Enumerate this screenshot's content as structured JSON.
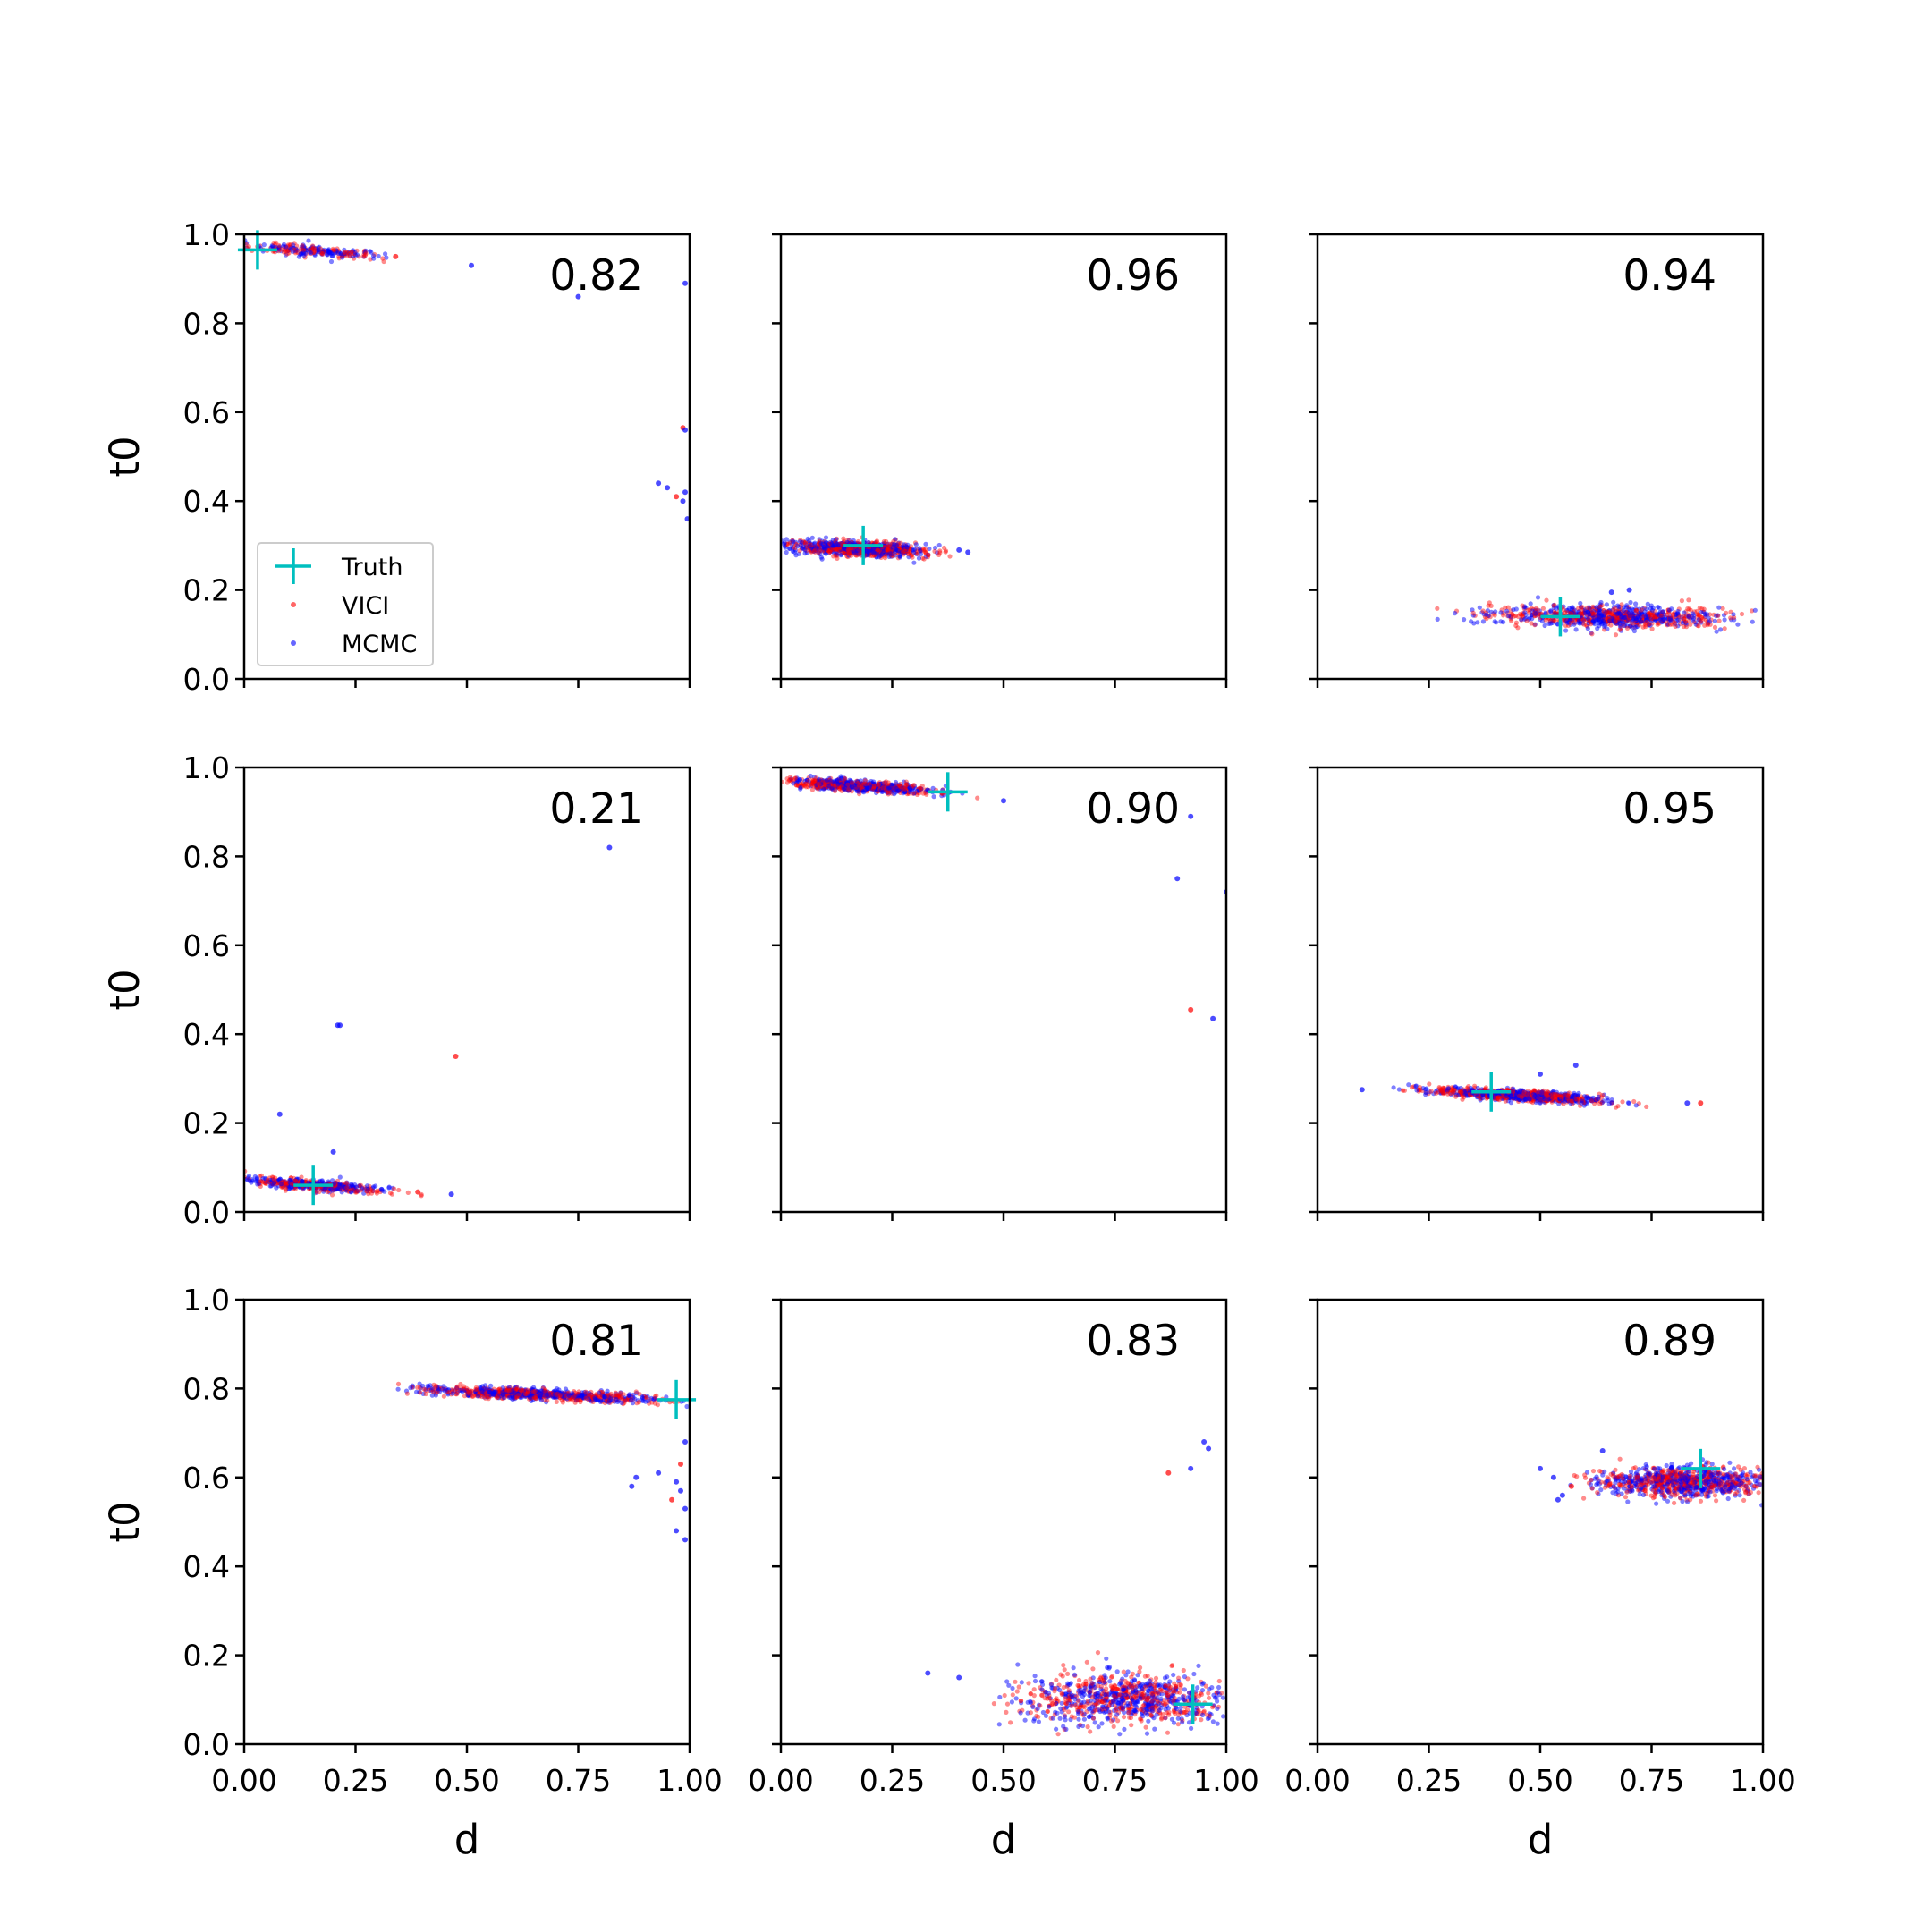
{
  "colors": {
    "truth": "#00BFBF",
    "vici": "#FF0000",
    "mcmc": "#0000FF"
  },
  "legend": {
    "placement": "lower-left",
    "panel_index": 0,
    "entries": [
      {
        "label": "Truth",
        "marker": "plus",
        "color": "#00BFBF"
      },
      {
        "label": "VICI",
        "marker": "dot",
        "color": "#FF0000"
      },
      {
        "label": "MCMC",
        "marker": "dot",
        "color": "#0000FF"
      }
    ]
  },
  "chart_data": [
    {
      "type": "scatter",
      "xlabel": "",
      "ylabel": "t0",
      "xlim": [
        0,
        1
      ],
      "ylim": [
        0,
        1
      ],
      "score": "0.82",
      "truth": [
        0.03,
        0.965
      ],
      "clusters": [
        {
          "cx": 0.16,
          "cy": 0.962,
          "sx": 0.075,
          "sy": 0.006,
          "tilt": -0.07,
          "xmin": 0.0,
          "xmax": 0.35
        }
      ],
      "outliers": [
        [
          0.51,
          0.93
        ],
        [
          0.75,
          0.86
        ],
        [
          0.99,
          0.89
        ],
        [
          0.985,
          0.565
        ],
        [
          0.99,
          0.56
        ],
        [
          0.93,
          0.44
        ],
        [
          0.95,
          0.43
        ],
        [
          0.97,
          0.41
        ],
        [
          0.985,
          0.4
        ],
        [
          0.99,
          0.42
        ],
        [
          0.995,
          0.36
        ],
        [
          0.34,
          0.95
        ]
      ],
      "x_ticks": [
        "0.00",
        "0.25",
        "0.50",
        "0.75",
        "1.00"
      ],
      "y_ticks": [
        "0.0",
        "0.2",
        "0.4",
        "0.6",
        "0.8",
        "1.0"
      ],
      "show_x_tick_labels": false,
      "show_y_tick_labels": true
    },
    {
      "type": "scatter",
      "xlabel": "",
      "ylabel": "",
      "xlim": [
        0,
        1
      ],
      "ylim": [
        0,
        1
      ],
      "score": "0.96",
      "truth": [
        0.185,
        0.3
      ],
      "clusters": [
        {
          "cx": 0.17,
          "cy": 0.293,
          "sx": 0.075,
          "sy": 0.008,
          "tilt": -0.04,
          "xmin": 0.0,
          "xmax": 0.43
        }
      ],
      "outliers": [
        [
          0.42,
          0.285
        ],
        [
          0.4,
          0.29
        ]
      ],
      "x_ticks": [
        "0.00",
        "0.25",
        "0.50",
        "0.75",
        "1.00"
      ],
      "y_ticks": [
        "0.0",
        "0.2",
        "0.4",
        "0.6",
        "0.8",
        "1.0"
      ],
      "show_x_tick_labels": false,
      "show_y_tick_labels": false
    },
    {
      "type": "scatter",
      "xlabel": "",
      "ylabel": "",
      "xlim": [
        0,
        1
      ],
      "ylim": [
        0,
        1
      ],
      "score": "0.94",
      "truth": [
        0.545,
        0.14
      ],
      "clusters": [
        {
          "cx": 0.66,
          "cy": 0.14,
          "sx": 0.13,
          "sy": 0.012,
          "tilt": -0.02,
          "xmin": 0.26,
          "xmax": 1.0
        }
      ],
      "outliers": [
        [
          0.7,
          0.2
        ],
        [
          0.66,
          0.195
        ]
      ],
      "x_ticks": [
        "0.00",
        "0.25",
        "0.50",
        "0.75",
        "1.00"
      ],
      "y_ticks": [
        "0.0",
        "0.2",
        "0.4",
        "0.6",
        "0.8",
        "1.0"
      ],
      "show_x_tick_labels": false,
      "show_y_tick_labels": false
    },
    {
      "type": "scatter",
      "xlabel": "",
      "ylabel": "t0",
      "xlim": [
        0,
        1
      ],
      "ylim": [
        0,
        1
      ],
      "score": "0.21",
      "truth": [
        0.155,
        0.06
      ],
      "clusters": [
        {
          "cx": 0.15,
          "cy": 0.06,
          "sx": 0.075,
          "sy": 0.006,
          "tilt": -0.07,
          "xmin": 0.0,
          "xmax": 0.4
        }
      ],
      "outliers": [
        [
          0.82,
          0.82
        ],
        [
          0.215,
          0.42
        ],
        [
          0.21,
          0.42
        ],
        [
          0.475,
          0.35
        ],
        [
          0.08,
          0.22
        ],
        [
          0.2,
          0.135
        ],
        [
          0.465,
          0.04
        ],
        [
          0.39,
          0.045
        ]
      ],
      "x_ticks": [
        "0.00",
        "0.25",
        "0.50",
        "0.75",
        "1.00"
      ],
      "y_ticks": [
        "0.0",
        "0.2",
        "0.4",
        "0.6",
        "0.8",
        "1.0"
      ],
      "show_x_tick_labels": false,
      "show_y_tick_labels": true
    },
    {
      "type": "scatter",
      "xlabel": "",
      "ylabel": "",
      "xlim": [
        0,
        1
      ],
      "ylim": [
        0,
        1
      ],
      "score": "0.90",
      "truth": [
        0.375,
        0.945
      ],
      "clusters": [
        {
          "cx": 0.17,
          "cy": 0.958,
          "sx": 0.085,
          "sy": 0.006,
          "tilt": -0.06,
          "xmin": 0.0,
          "xmax": 0.46
        }
      ],
      "outliers": [
        [
          0.92,
          0.89
        ],
        [
          0.89,
          0.75
        ],
        [
          1.0,
          0.72
        ],
        [
          0.92,
          0.455
        ],
        [
          0.97,
          0.435
        ],
        [
          0.5,
          0.925
        ]
      ],
      "x_ticks": [
        "0.00",
        "0.25",
        "0.50",
        "0.75",
        "1.00"
      ],
      "y_ticks": [
        "0.0",
        "0.2",
        "0.4",
        "0.6",
        "0.8",
        "1.0"
      ],
      "show_x_tick_labels": false,
      "show_y_tick_labels": false
    },
    {
      "type": "scatter",
      "xlabel": "",
      "ylabel": "",
      "xlim": [
        0,
        1
      ],
      "ylim": [
        0,
        1
      ],
      "score": "0.95",
      "truth": [
        0.39,
        0.27
      ],
      "clusters": [
        {
          "cx": 0.45,
          "cy": 0.262,
          "sx": 0.095,
          "sy": 0.006,
          "tilt": -0.06,
          "xmin": 0.16,
          "xmax": 0.87
        }
      ],
      "outliers": [
        [
          0.58,
          0.33
        ],
        [
          0.5,
          0.31
        ],
        [
          0.1,
          0.275
        ],
        [
          0.86,
          0.245
        ],
        [
          0.83,
          0.245
        ]
      ],
      "x_ticks": [
        "0.00",
        "0.25",
        "0.50",
        "0.75",
        "1.00"
      ],
      "y_ticks": [
        "0.0",
        "0.2",
        "0.4",
        "0.6",
        "0.8",
        "1.0"
      ],
      "show_x_tick_labels": false,
      "show_y_tick_labels": false
    },
    {
      "type": "scatter",
      "xlabel": "d",
      "ylabel": "t0",
      "xlim": [
        0,
        1
      ],
      "ylim": [
        0,
        1
      ],
      "score": "0.81",
      "truth": [
        0.97,
        0.775
      ],
      "clusters": [
        {
          "cx": 0.66,
          "cy": 0.787,
          "sx": 0.14,
          "sy": 0.006,
          "tilt": -0.045,
          "xmin": 0.33,
          "xmax": 1.0
        }
      ],
      "outliers": [
        [
          0.88,
          0.6
        ],
        [
          0.93,
          0.61
        ],
        [
          0.97,
          0.59
        ],
        [
          0.96,
          0.55
        ],
        [
          0.99,
          0.53
        ],
        [
          0.97,
          0.48
        ],
        [
          0.99,
          0.46
        ],
        [
          0.98,
          0.63
        ],
        [
          0.99,
          0.68
        ],
        [
          0.87,
          0.58
        ],
        [
          0.98,
          0.57
        ]
      ],
      "x_ticks": [
        "0.00",
        "0.25",
        "0.50",
        "0.75",
        "1.00"
      ],
      "y_ticks": [
        "0.0",
        "0.2",
        "0.4",
        "0.6",
        "0.8",
        "1.0"
      ],
      "show_x_tick_labels": true,
      "show_y_tick_labels": true
    },
    {
      "type": "scatter",
      "xlabel": "d",
      "ylabel": "",
      "xlim": [
        0,
        1
      ],
      "ylim": [
        0,
        1
      ],
      "score": "0.83",
      "truth": [
        0.925,
        0.09
      ],
      "clusters": [
        {
          "cx": 0.78,
          "cy": 0.1,
          "sx": 0.12,
          "sy": 0.028,
          "tilt": 0.0,
          "xmin": 0.45,
          "xmax": 1.0
        }
      ],
      "outliers": [
        [
          0.95,
          0.68
        ],
        [
          0.96,
          0.665
        ],
        [
          0.92,
          0.62
        ],
        [
          0.87,
          0.61
        ],
        [
          0.33,
          0.16
        ],
        [
          0.4,
          0.15
        ]
      ],
      "x_ticks": [
        "0.00",
        "0.25",
        "0.50",
        "0.75",
        "1.00"
      ],
      "y_ticks": [
        "0.0",
        "0.2",
        "0.4",
        "0.6",
        "0.8",
        "1.0"
      ],
      "show_x_tick_labels": true,
      "show_y_tick_labels": false
    },
    {
      "type": "scatter",
      "xlabel": "d",
      "ylabel": "",
      "xlim": [
        0,
        1
      ],
      "ylim": [
        0,
        1
      ],
      "score": "0.89",
      "truth": [
        0.86,
        0.62
      ],
      "clusters": [
        {
          "cx": 0.82,
          "cy": 0.59,
          "sx": 0.095,
          "sy": 0.018,
          "tilt": 0.0,
          "xmin": 0.55,
          "xmax": 1.0
        }
      ],
      "outliers": [
        [
          0.5,
          0.62
        ],
        [
          0.53,
          0.6
        ],
        [
          0.55,
          0.56
        ],
        [
          0.57,
          0.58
        ],
        [
          0.64,
          0.66
        ],
        [
          0.54,
          0.55
        ]
      ],
      "x_ticks": [
        "0.00",
        "0.25",
        "0.50",
        "0.75",
        "1.00"
      ],
      "y_ticks": [
        "0.0",
        "0.2",
        "0.4",
        "0.6",
        "0.8",
        "1.0"
      ],
      "show_x_tick_labels": true,
      "show_y_tick_labels": false
    }
  ]
}
